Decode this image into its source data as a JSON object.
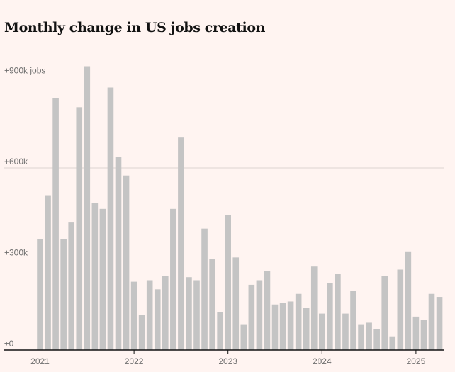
{
  "chart_data": {
    "type": "bar",
    "title": "Monthly change in US jobs creation",
    "xlabel": "",
    "ylabel": "",
    "ylim": [
      0,
      950
    ],
    "grid": true,
    "legend": "none",
    "bar_color": "#c4c4c4",
    "y_ticks": [
      {
        "value": 0,
        "label": "±0"
      },
      {
        "value": 300,
        "label": "+300k"
      },
      {
        "value": 600,
        "label": "+600k"
      },
      {
        "value": 900,
        "label": "+900k jobs"
      }
    ],
    "x_ticks": [
      {
        "index": 0,
        "label": "2021"
      },
      {
        "index": 12,
        "label": "2022"
      },
      {
        "index": 24,
        "label": "2023"
      },
      {
        "index": 36,
        "label": "2024"
      },
      {
        "index": 48,
        "label": "2025"
      }
    ],
    "categories": [
      "2021-01",
      "2021-02",
      "2021-03",
      "2021-04",
      "2021-05",
      "2021-06",
      "2021-07",
      "2021-08",
      "2021-09",
      "2021-10",
      "2021-11",
      "2021-12",
      "2022-01",
      "2022-02",
      "2022-03",
      "2022-04",
      "2022-05",
      "2022-06",
      "2022-07",
      "2022-08",
      "2022-09",
      "2022-10",
      "2022-11",
      "2022-12",
      "2023-01",
      "2023-02",
      "2023-03",
      "2023-04",
      "2023-05",
      "2023-06",
      "2023-07",
      "2023-08",
      "2023-09",
      "2023-10",
      "2023-11",
      "2023-12",
      "2024-01",
      "2024-02",
      "2024-03",
      "2024-04",
      "2024-05",
      "2024-06",
      "2024-07",
      "2024-08",
      "2024-09",
      "2024-10",
      "2024-11",
      "2024-12",
      "2025-01",
      "2025-02",
      "2025-03",
      "2025-04"
    ],
    "values": [
      365,
      510,
      830,
      365,
      420,
      800,
      935,
      485,
      465,
      865,
      635,
      575,
      225,
      115,
      230,
      200,
      245,
      465,
      700,
      240,
      230,
      400,
      300,
      125,
      445,
      305,
      85,
      215,
      230,
      260,
      150,
      155,
      160,
      185,
      140,
      275,
      120,
      220,
      250,
      120,
      195,
      85,
      90,
      70,
      245,
      45,
      265,
      325,
      110,
      100,
      185,
      175
    ]
  }
}
